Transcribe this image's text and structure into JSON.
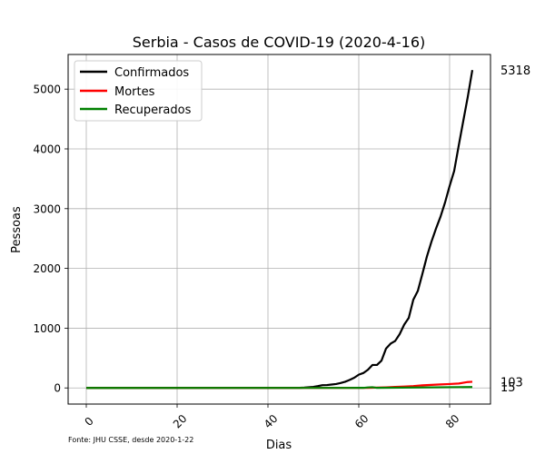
{
  "chart_data": {
    "type": "line",
    "title": "Serbia - Casos de COVID-19 (2020-4-16)",
    "xlabel": "Dias",
    "ylabel": "Pessoas",
    "source_note": "Fonte: JHU CSSE, desde 2020-1-22",
    "xlim": [
      -4,
      89
    ],
    "ylim": [
      -270,
      5580
    ],
    "xticks": [
      0,
      20,
      40,
      60,
      80
    ],
    "yticks": [
      0,
      1000,
      2000,
      3000,
      4000,
      5000
    ],
    "grid": true,
    "legend_position": "top-left",
    "series": [
      {
        "name": "Confirmados",
        "color": "#000000",
        "x": [
          0,
          47,
          48,
          49,
          50,
          51,
          52,
          53,
          54,
          55,
          56,
          57,
          58,
          59,
          60,
          61,
          62,
          63,
          64,
          65,
          66,
          67,
          68,
          69,
          70,
          71,
          72,
          73,
          74,
          75,
          76,
          77,
          78,
          79,
          80,
          81,
          82,
          83,
          84,
          85
        ],
        "y": [
          0,
          1,
          5,
          12,
          18,
          31,
          46,
          48,
          57,
          65,
          83,
          103,
          135,
          171,
          222,
          249,
          303,
          384,
          384,
          457,
          659,
          741,
          785,
          900,
          1060,
          1171,
          1476,
          1624,
          1908,
          2200,
          2447,
          2666,
          2867,
          3105,
          3380,
          3630,
          4054,
          4465,
          4873,
          5318
        ],
        "end_label": "5318"
      },
      {
        "name": "Mortes",
        "color": "#ff0000",
        "x": [
          0,
          60,
          62,
          64,
          66,
          68,
          70,
          72,
          74,
          76,
          78,
          80,
          82,
          84,
          85
        ],
        "y": [
          0,
          1,
          2,
          5,
          10,
          17,
          23,
          31,
          44,
          51,
          58,
          65,
          74,
          99,
          103
        ],
        "end_label": "103"
      },
      {
        "name": "Recuperados",
        "color": "#008000",
        "x": [
          0,
          61,
          62,
          63,
          64,
          85
        ],
        "y": [
          0,
          1,
          8,
          12,
          1,
          15
        ],
        "end_label": "15"
      }
    ]
  }
}
